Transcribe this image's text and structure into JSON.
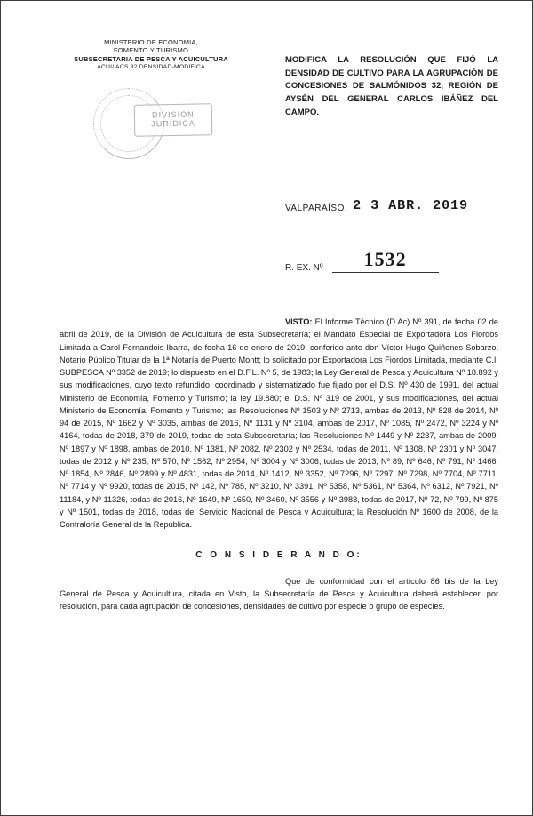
{
  "letterhead": {
    "line1": "MINISTERIO DE ECONOMIA,",
    "line2": "FOMENTO Y TURISMO",
    "line3": "SUBSECRETARIA DE PESCA Y ACUICULTURA",
    "line4": "ACUI/ ACS 32 DENSIDAD-MODIFICA"
  },
  "stamp": {
    "box_text": "DIVISION JURIDICA"
  },
  "title_block": "MODIFICA LA RESOLUCIÓN QUE FIJÓ LA DENSIDAD DE CULTIVO PARA LA AGRUPACIÓN DE CONCESIONES DE SALMÓNIDOS 32, REGIÓN DE AYSÉN DEL GENERAL CARLOS IBÁÑEZ DEL CAMPO.",
  "city": "VALPARAÍSO,",
  "date": "2 3 ABR. 2019",
  "rex_label": "R. EX. Nº",
  "rex_number": "1532",
  "visto_label": "VISTO:",
  "visto_body": "El Informe Técnico (D.Ac) Nº 391, de fecha 02 de abril de 2019, de la División de Acuicultura de esta Subsecretaría; el Mandato Especial de Exportadora Los Fiordos Limitada a Carol Fernandois Ibarra, de fecha 16 de enero de 2019, conferido ante don Víctor Hugo Quiñones Sobarzo, Notario Público Titular de la 1ª Notaría de Puerto Montt; lo solicitado por Exportadora Los Fiordos Limitada, mediante C.I. SUBPESCA Nº 3352 de 2019; lo dispuesto en el D.F.L. Nº 5, de 1983; la Ley General de Pesca y Acuicultura Nº 18.892 y sus modificaciones, cuyo texto refundido, coordinado y sistematizado fue fijado por el D.S. Nº 430 de 1991, del actual Ministerio de Economía, Fomento y Turismo; la ley 19.880; el D.S. Nº 319 de 2001, y sus modificaciones, del actual Ministerio de Economía, Fomento y Turismo; las Resoluciones Nº 1503 y Nº 2713, ambas de 2013, Nº 828 de 2014, Nº 94 de 2015, Nº 1662 y Nº 3035, ambas de 2016, Nº 1131 y Nº 3104, ambas de 2017, Nº 1085, Nº 2472, Nº 3224 y Nº 4164, todas de 2018, 379 de 2019, todas de esta Subsecretaría; las Resoluciones Nº 1449 y Nº 2237, ambas de 2009, Nº 1897 y Nº 1898, ambas de 2010, Nº 1381, Nº 2082, Nº 2302 y Nº 2534, todas de 2011, Nº 1308, Nº 2301 y Nº 3047, todas de 2012 y Nº 235, Nº 570, Nº 1562, Nº 2954, Nº 3004 y Nº 3006, todas de 2013, Nº 89, Nº 646, Nº 791, Nº 1466, Nº 1854, Nº 2846, Nº 2899 y Nº 4831, todas de 2014, Nº 1412, Nº 3352, Nº 7296, Nº 7297, Nº 7298, Nº 7704, Nº 7711, Nº 7714 y Nº 9920, todas de 2015, Nº 142, Nº 785, Nº 3210, Nº 3391, Nº 5358, Nº 5361, Nº 5364, Nº 6312, Nº 7921, Nº 11184, y Nº 11326, todas de 2016, Nº 1649, Nº 1650, Nº 3460, Nº 3556 y Nº 3983, todas de 2017, Nº 72, Nº 799, Nº 875 y Nº 1501, todas de 2018, todas del Servicio Nacional de Pesca y Acuicultura; la Resolución Nº 1600 de 2008, de la Contraloría General de la República.",
  "considerando_heading": "C O N S I D E R A N D O:",
  "considerando_body": "Que de conformidad con el artículo 86 bis de la Ley General de Pesca y Acuicultura, citada en Visto, la Subsecretaría de Pesca y Acuicultura deberá establecer, por resolución, para cada agrupación de concesiones, densidades de cultivo por especie o grupo de especies."
}
